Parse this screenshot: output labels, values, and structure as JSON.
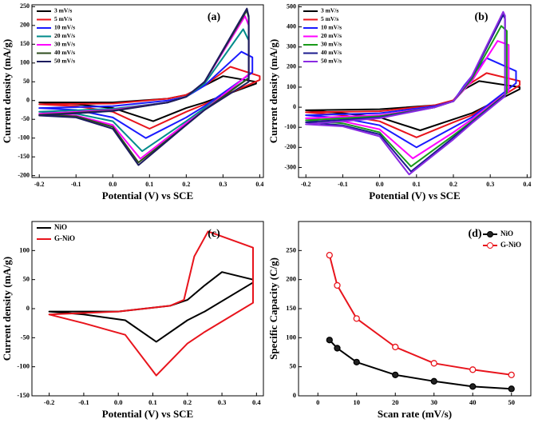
{
  "chart_data": [
    {
      "type": "line",
      "panel_label": "(a)",
      "xlabel": "Potential (V) vs SCE",
      "ylabel": "Current density (mA/g)",
      "legend_loc": "upper left",
      "xlim": [
        -0.22,
        0.41
      ],
      "xticks": [
        -0.2,
        -0.1,
        {
          "value": 0,
          "label": "0.0"
        },
        0.1,
        0.2,
        0.3,
        0.4
      ],
      "ylim": [
        -205,
        255
      ],
      "yticks": [
        -200,
        -150,
        -100,
        -50,
        0,
        50,
        100,
        150,
        200,
        250
      ],
      "series": [
        {
          "name": "3 mV/s",
          "color": "#000000",
          "x": [
            -0.2,
            0,
            0.15,
            0.2,
            0.25,
            0.3,
            0.39,
            0.39,
            0.25,
            0.2,
            0.11,
            0,
            -0.1,
            -0.2
          ],
          "values": [
            -5,
            -5,
            5,
            15,
            40,
            65,
            50,
            45,
            -5,
            -20,
            -55,
            -20,
            -10,
            -5
          ]
        },
        {
          "name": "5 mV/s",
          "color": "#e8141c",
          "x": [
            -0.2,
            0,
            0.15,
            0.2,
            0.25,
            0.32,
            0.4,
            0.4,
            0.25,
            0.2,
            0.1,
            0,
            -0.1,
            -0.2
          ],
          "values": [
            -10,
            -8,
            5,
            15,
            40,
            90,
            65,
            55,
            -10,
            -30,
            -75,
            -30,
            -15,
            -10
          ]
        },
        {
          "name": "10 mV/s",
          "color": "#1a1aff",
          "x": [
            -0.2,
            0,
            0.15,
            0.2,
            0.25,
            0.35,
            0.38,
            0.38,
            0.25,
            0.2,
            0.09,
            0,
            -0.1,
            -0.2
          ],
          "values": [
            -20,
            -15,
            0,
            10,
            40,
            130,
            115,
            75,
            -15,
            -45,
            -100,
            -45,
            -25,
            -20
          ]
        },
        {
          "name": "20 mV/s",
          "color": "#008b8b",
          "x": [
            -0.2,
            0,
            0.15,
            0.2,
            0.25,
            0.355,
            0.37,
            0.37,
            0.25,
            0.2,
            0.08,
            0,
            -0.1,
            -0.2
          ],
          "values": [
            -30,
            -22,
            -5,
            10,
            45,
            190,
            160,
            60,
            -20,
            -55,
            -135,
            -55,
            -35,
            -30
          ]
        },
        {
          "name": "30 mV/s",
          "color": "#ff00ff",
          "x": [
            -0.2,
            0,
            0.15,
            0.2,
            0.25,
            0.36,
            0.37,
            0.37,
            0.25,
            0.2,
            0.075,
            0,
            -0.1,
            -0.2
          ],
          "values": [
            -35,
            -25,
            -5,
            10,
            50,
            225,
            200,
            70,
            -25,
            -60,
            -155,
            -65,
            -40,
            -35
          ]
        },
        {
          "name": "40 mV/s",
          "color": "#2e4d1e",
          "x": [
            -0.2,
            0,
            0.15,
            0.2,
            0.25,
            0.365,
            0.37,
            0.37,
            0.25,
            0.2,
            0.07,
            0,
            -0.1,
            -0.2
          ],
          "values": [
            -38,
            -27,
            -5,
            10,
            50,
            240,
            220,
            60,
            -25,
            -65,
            -165,
            -70,
            -42,
            -38
          ]
        },
        {
          "name": "50 mV/s",
          "color": "#1c1c5e",
          "x": [
            -0.2,
            0,
            0.15,
            0.2,
            0.25,
            0.365,
            0.37,
            0.37,
            0.25,
            0.2,
            0.07,
            0,
            -0.1,
            -0.2
          ],
          "values": [
            -40,
            -28,
            -5,
            10,
            50,
            245,
            225,
            50,
            -25,
            -65,
            -172,
            -75,
            -45,
            -40
          ]
        }
      ]
    },
    {
      "type": "line",
      "panel_label": "(b)",
      "xlabel": "Potential (V) vs SCE",
      "ylabel": "Current density (mA/g)",
      "legend_loc": "upper left",
      "xlim": [
        -0.22,
        0.41
      ],
      "xticks": [
        -0.2,
        -0.1,
        {
          "value": 0,
          "label": "0.0"
        },
        0.1,
        0.2,
        0.3,
        0.4
      ],
      "ylim": [
        -350,
        510
      ],
      "yticks": [
        -300,
        -200,
        -100,
        0,
        100,
        200,
        300,
        400,
        500
      ],
      "series": [
        {
          "name": "3 mV/s",
          "color": "#000000",
          "x": [
            -0.2,
            0,
            0.15,
            0.2,
            0.23,
            0.27,
            0.38,
            0.38,
            0.25,
            0.2,
            0.11,
            0,
            -0.1,
            -0.2
          ],
          "values": [
            -15,
            -10,
            10,
            30,
            90,
            130,
            100,
            90,
            -30,
            -60,
            -115,
            -50,
            -30,
            -15
          ]
        },
        {
          "name": "5 mV/s",
          "color": "#e8141c",
          "x": [
            -0.2,
            0,
            0.15,
            0.2,
            0.23,
            0.29,
            0.38,
            0.38,
            0.25,
            0.2,
            0.1,
            0,
            -0.1,
            -0.2
          ],
          "values": [
            -25,
            -20,
            10,
            35,
            100,
            170,
            130,
            110,
            -40,
            -75,
            -150,
            -70,
            -40,
            -25
          ]
        },
        {
          "name": "10 mV/s",
          "color": "#1a1aff",
          "x": [
            -0.2,
            0,
            0.15,
            0.2,
            0.23,
            0.29,
            0.37,
            0.37,
            0.25,
            0.2,
            0.1,
            0,
            -0.1,
            -0.2
          ],
          "values": [
            -40,
            -30,
            5,
            30,
            110,
            245,
            180,
            120,
            -50,
            -100,
            -200,
            -90,
            -55,
            -40
          ]
        },
        {
          "name": "20 mV/s",
          "color": "#ff00ff",
          "x": [
            -0.2,
            0,
            0.15,
            0.2,
            0.25,
            0.32,
            0.35,
            0.35,
            0.25,
            0.2,
            0.09,
            0,
            -0.1,
            -0.2
          ],
          "values": [
            -55,
            -40,
            0,
            30,
            130,
            330,
            310,
            80,
            -60,
            -125,
            -255,
            -110,
            -70,
            -55
          ]
        },
        {
          "name": "30 mV/s",
          "color": "#1a9a1a",
          "x": [
            -0.2,
            0,
            0.15,
            0.2,
            0.25,
            0.33,
            0.345,
            0.345,
            0.25,
            0.2,
            0.085,
            0,
            -0.1,
            -0.2
          ],
          "values": [
            -65,
            -45,
            0,
            30,
            140,
            405,
            380,
            70,
            -70,
            -140,
            -295,
            -125,
            -80,
            -65
          ]
        },
        {
          "name": "40 mV/s",
          "color": "#1c1c8e",
          "x": [
            -0.2,
            0,
            0.15,
            0.2,
            0.25,
            0.335,
            0.34,
            0.34,
            0.25,
            0.2,
            0.085,
            0,
            -0.1,
            -0.2
          ],
          "values": [
            -75,
            -50,
            0,
            30,
            150,
            460,
            440,
            60,
            -75,
            -150,
            -320,
            -135,
            -90,
            -75
          ]
        },
        {
          "name": "50 mV/s",
          "color": "#8a2be2",
          "x": [
            -0.2,
            0,
            0.15,
            0.2,
            0.25,
            0.335,
            0.34,
            0.34,
            0.25,
            0.2,
            0.08,
            0,
            -0.1,
            -0.2
          ],
          "values": [
            -85,
            -55,
            0,
            30,
            155,
            475,
            455,
            55,
            -80,
            -160,
            -335,
            -145,
            -95,
            -85
          ]
        }
      ]
    },
    {
      "type": "line",
      "panel_label": "(c)",
      "xlabel": "Potential (V) vs SCE",
      "ylabel": "Current density (mA/g)",
      "legend_loc": "upper left",
      "xlim": [
        -0.25,
        0.42
      ],
      "xticks": [
        -0.2,
        -0.1,
        {
          "value": 0,
          "label": "0.0"
        },
        0.1,
        0.2,
        0.3,
        0.4
      ],
      "ylim": [
        -150,
        150
      ],
      "yticks": [
        -150,
        -100,
        -50,
        0,
        50,
        100
      ],
      "series": [
        {
          "name": "NiO",
          "color": "#000000",
          "x": [
            -0.2,
            0,
            0.15,
            0.2,
            0.25,
            0.3,
            0.39,
            0.39,
            0.25,
            0.2,
            0.11,
            0.02,
            -0.1,
            -0.2
          ],
          "values": [
            -5,
            -5,
            5,
            15,
            40,
            63,
            50,
            45,
            -5,
            -20,
            -57,
            -20,
            -10,
            -5
          ]
        },
        {
          "name": "G-NiO",
          "color": "#e8141c",
          "x": [
            -0.2,
            0,
            0.15,
            0.19,
            0.22,
            0.26,
            0.39,
            0.39,
            0.25,
            0.2,
            0.11,
            0.02,
            -0.1,
            -0.2
          ],
          "values": [
            -10,
            -5,
            5,
            15,
            90,
            133,
            105,
            10,
            -40,
            -60,
            -115,
            -45,
            -25,
            -10
          ]
        }
      ]
    },
    {
      "type": "line",
      "markers": true,
      "panel_label": "(d)",
      "xlabel": "Scan rate (mV/s)",
      "ylabel": "Specific Capacity (C/g)",
      "legend_loc": "upper right",
      "xlim": [
        -5,
        55
      ],
      "xticks": [
        0,
        10,
        20,
        30,
        40,
        50
      ],
      "ylim": [
        0,
        300
      ],
      "yticks": [
        0,
        50,
        100,
        150,
        200,
        250
      ],
      "series": [
        {
          "name": "NiO",
          "color": "#000000",
          "x": [
            3,
            5,
            10,
            20,
            30,
            40,
            50
          ],
          "values": [
            96,
            82,
            58,
            36,
            25,
            16,
            12
          ]
        },
        {
          "name": "G-NiO",
          "color": "#e8141c",
          "x": [
            3,
            5,
            10,
            20,
            30,
            40,
            50
          ],
          "values": [
            242,
            190,
            133,
            84,
            56,
            45,
            36
          ]
        }
      ]
    }
  ]
}
